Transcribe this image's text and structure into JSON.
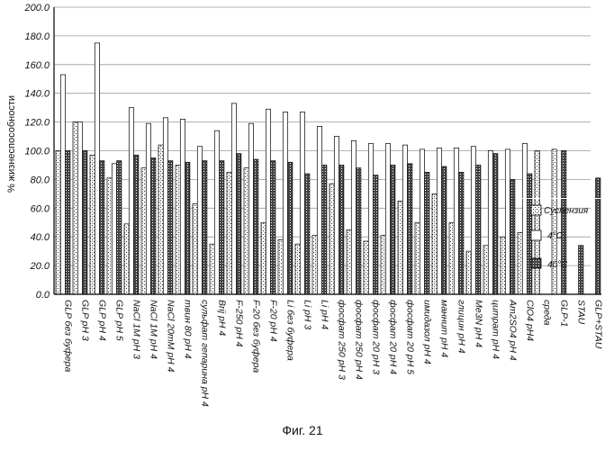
{
  "chart_data": {
    "type": "bar",
    "ylabel": "% жизнеспособности",
    "ylim": [
      0,
      200
    ],
    "yticks": [
      "0.0",
      "20.0",
      "40.0",
      "60.0",
      "80.0",
      "100.0",
      "120.0",
      "140.0",
      "160.0",
      "180.0",
      "200.0"
    ],
    "grid": true,
    "legend_position": "right",
    "categories": [
      "GLP без буфера",
      "GLP pH 3",
      "GLP pH 4",
      "GLP pH 5",
      "NaCl 1M pH 3",
      "NaCl 1M pH 4",
      "NaCl 20mM pH 4",
      "твин 80 pH 4",
      "сульфат гепарина pH 4",
      "Brij pH 4",
      "F-250 pH 4",
      "F-20 без буфера",
      "F-20 pH 4",
      "Li без буфера",
      "Li pH 3",
      "Li pH 4",
      "фосфат 250 pH 3",
      "фосфат 250 pH 4",
      "фосфат 20 pH 3",
      "фосфат 20 pH 4",
      "фосфат 20 pH 5",
      "имидазол pH 4",
      "маннит pH 4",
      "глицин pH 4",
      "Me3N pH 4",
      "цитрат pH 4",
      "Am2SO4 pH 4",
      "ClO4 pH4",
      "среда",
      "GLP-1",
      "STAU",
      "GLP+STAU"
    ],
    "series": [
      {
        "name": "Суспензия",
        "values": [
          100,
          120,
          97,
          81,
          49,
          88,
          104,
          90,
          63,
          35,
          85,
          88,
          50,
          38,
          35,
          41,
          77,
          45,
          37,
          41,
          65,
          50,
          70,
          50,
          30,
          34,
          40,
          43,
          100,
          101,
          null,
          null
        ]
      },
      {
        "name": "4°C",
        "values": [
          153,
          120,
          175,
          91,
          130,
          119,
          123,
          122,
          103,
          114,
          133,
          119,
          129,
          127,
          127,
          117,
          110,
          107,
          105,
          105,
          104,
          101,
          102,
          102,
          103,
          100,
          101,
          105,
          null,
          null,
          null,
          null
        ]
      },
      {
        "name": "40°C",
        "values": [
          100,
          100,
          93,
          93,
          97,
          95,
          93,
          92,
          93,
          93,
          98,
          94,
          93,
          92,
          84,
          90,
          90,
          88,
          83,
          90,
          91,
          85,
          89,
          85,
          90,
          98,
          80,
          84,
          null,
          100,
          34,
          81
        ]
      }
    ]
  },
  "caption": "Фиг. 21"
}
